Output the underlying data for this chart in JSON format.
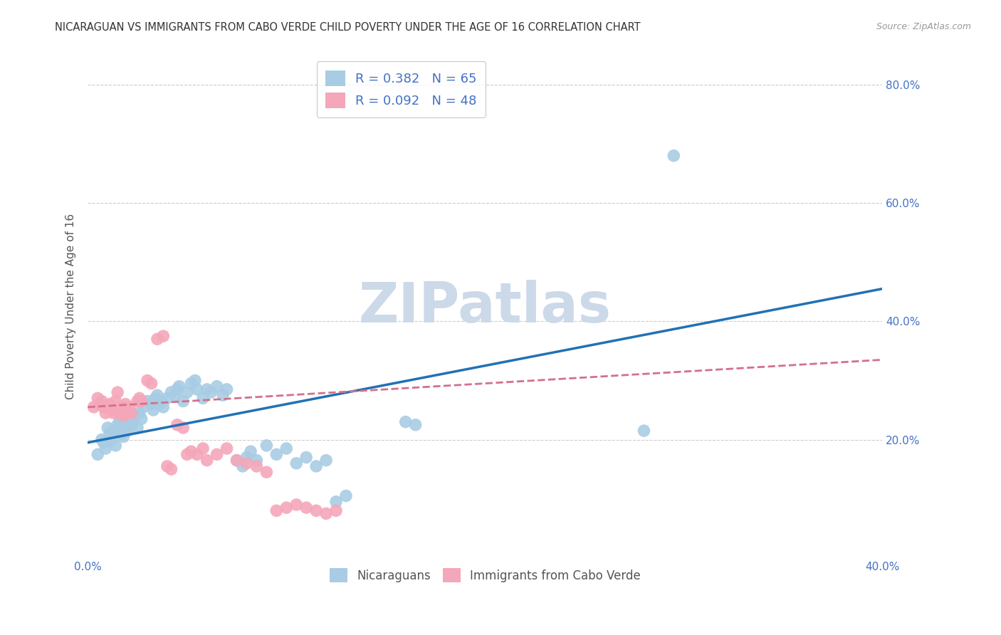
{
  "title": "NICARAGUAN VS IMMIGRANTS FROM CABO VERDE CHILD POVERTY UNDER THE AGE OF 16 CORRELATION CHART",
  "source": "Source: ZipAtlas.com",
  "ylabel": "Child Poverty Under the Age of 16",
  "xlim": [
    0.0,
    0.4
  ],
  "ylim": [
    0.0,
    0.85
  ],
  "yticks": [
    0.0,
    0.2,
    0.4,
    0.6,
    0.8
  ],
  "xticks": [
    0.0,
    0.1,
    0.2,
    0.3,
    0.4
  ],
  "legend_r1": "R = 0.382   N = 65",
  "legend_r2": "R = 0.092   N = 48",
  "dot_color_blue": "#a8cce4",
  "dot_color_pink": "#f4a7b9",
  "line_color_blue": "#2171b5",
  "line_color_pink": "#d4708a",
  "grid_color": "#cccccc",
  "bg_color": "#ffffff",
  "watermark_color": "#ccd9e8",
  "title_color": "#333333",
  "axis_label_color": "#555555",
  "tick_color": "#4472c4",
  "scatter_blue": [
    [
      0.005,
      0.175
    ],
    [
      0.007,
      0.2
    ],
    [
      0.008,
      0.195
    ],
    [
      0.009,
      0.185
    ],
    [
      0.01,
      0.22
    ],
    [
      0.011,
      0.21
    ],
    [
      0.012,
      0.2
    ],
    [
      0.013,
      0.215
    ],
    [
      0.014,
      0.19
    ],
    [
      0.015,
      0.225
    ],
    [
      0.016,
      0.23
    ],
    [
      0.017,
      0.21
    ],
    [
      0.018,
      0.205
    ],
    [
      0.019,
      0.22
    ],
    [
      0.02,
      0.215
    ],
    [
      0.021,
      0.23
    ],
    [
      0.022,
      0.225
    ],
    [
      0.023,
      0.235
    ],
    [
      0.024,
      0.24
    ],
    [
      0.025,
      0.22
    ],
    [
      0.026,
      0.245
    ],
    [
      0.027,
      0.235
    ],
    [
      0.028,
      0.255
    ],
    [
      0.03,
      0.265
    ],
    [
      0.032,
      0.26
    ],
    [
      0.033,
      0.25
    ],
    [
      0.034,
      0.27
    ],
    [
      0.035,
      0.275
    ],
    [
      0.036,
      0.26
    ],
    [
      0.037,
      0.265
    ],
    [
      0.038,
      0.255
    ],
    [
      0.04,
      0.27
    ],
    [
      0.042,
      0.28
    ],
    [
      0.044,
      0.275
    ],
    [
      0.045,
      0.285
    ],
    [
      0.046,
      0.29
    ],
    [
      0.048,
      0.265
    ],
    [
      0.05,
      0.28
    ],
    [
      0.052,
      0.295
    ],
    [
      0.054,
      0.3
    ],
    [
      0.055,
      0.285
    ],
    [
      0.058,
      0.27
    ],
    [
      0.06,
      0.285
    ],
    [
      0.062,
      0.28
    ],
    [
      0.065,
      0.29
    ],
    [
      0.068,
      0.275
    ],
    [
      0.07,
      0.285
    ],
    [
      0.075,
      0.165
    ],
    [
      0.078,
      0.155
    ],
    [
      0.08,
      0.17
    ],
    [
      0.082,
      0.18
    ],
    [
      0.085,
      0.165
    ],
    [
      0.09,
      0.19
    ],
    [
      0.095,
      0.175
    ],
    [
      0.1,
      0.185
    ],
    [
      0.105,
      0.16
    ],
    [
      0.11,
      0.17
    ],
    [
      0.115,
      0.155
    ],
    [
      0.12,
      0.165
    ],
    [
      0.125,
      0.095
    ],
    [
      0.13,
      0.105
    ],
    [
      0.16,
      0.23
    ],
    [
      0.165,
      0.225
    ],
    [
      0.28,
      0.215
    ],
    [
      0.295,
      0.68
    ]
  ],
  "scatter_pink": [
    [
      0.003,
      0.255
    ],
    [
      0.005,
      0.27
    ],
    [
      0.006,
      0.26
    ],
    [
      0.007,
      0.265
    ],
    [
      0.008,
      0.255
    ],
    [
      0.009,
      0.245
    ],
    [
      0.01,
      0.255
    ],
    [
      0.011,
      0.26
    ],
    [
      0.012,
      0.25
    ],
    [
      0.013,
      0.245
    ],
    [
      0.014,
      0.265
    ],
    [
      0.015,
      0.28
    ],
    [
      0.016,
      0.245
    ],
    [
      0.017,
      0.255
    ],
    [
      0.018,
      0.24
    ],
    [
      0.019,
      0.26
    ],
    [
      0.02,
      0.245
    ],
    [
      0.021,
      0.255
    ],
    [
      0.022,
      0.245
    ],
    [
      0.025,
      0.265
    ],
    [
      0.026,
      0.27
    ],
    [
      0.027,
      0.265
    ],
    [
      0.03,
      0.3
    ],
    [
      0.032,
      0.295
    ],
    [
      0.035,
      0.37
    ],
    [
      0.038,
      0.375
    ],
    [
      0.04,
      0.155
    ],
    [
      0.042,
      0.15
    ],
    [
      0.045,
      0.225
    ],
    [
      0.048,
      0.22
    ],
    [
      0.05,
      0.175
    ],
    [
      0.052,
      0.18
    ],
    [
      0.055,
      0.175
    ],
    [
      0.058,
      0.185
    ],
    [
      0.06,
      0.165
    ],
    [
      0.065,
      0.175
    ],
    [
      0.07,
      0.185
    ],
    [
      0.075,
      0.165
    ],
    [
      0.08,
      0.16
    ],
    [
      0.085,
      0.155
    ],
    [
      0.09,
      0.145
    ],
    [
      0.095,
      0.08
    ],
    [
      0.1,
      0.085
    ],
    [
      0.105,
      0.09
    ],
    [
      0.11,
      0.085
    ],
    [
      0.115,
      0.08
    ],
    [
      0.12,
      0.075
    ],
    [
      0.125,
      0.08
    ]
  ],
  "blue_line_x": [
    0.0,
    0.4
  ],
  "blue_line_y": [
    0.195,
    0.455
  ],
  "pink_line_x": [
    0.0,
    0.4
  ],
  "pink_line_y": [
    0.255,
    0.335
  ]
}
